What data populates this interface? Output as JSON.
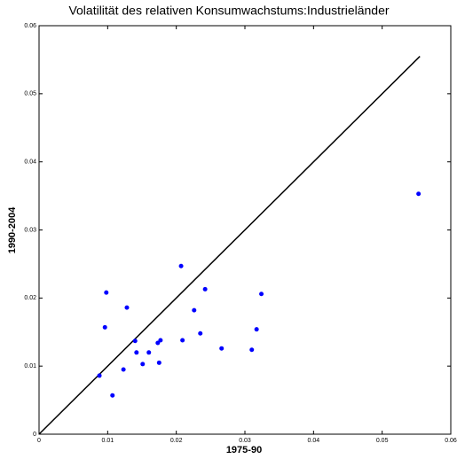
{
  "chart_data": {
    "type": "scatter",
    "title": "Volatilität des relativen Konsumwachstums:Industrieländer",
    "xlabel": "1975-90",
    "ylabel": "1990-2004",
    "color": "#0000ff",
    "line_color": "#000000",
    "x": [
      0.0088,
      0.0096,
      0.0098,
      0.0107,
      0.0123,
      0.0128,
      0.014,
      0.0142,
      0.0151,
      0.016,
      0.0173,
      0.0177,
      0.0175,
      0.0207,
      0.0209,
      0.0226,
      0.0235,
      0.0242,
      0.0266,
      0.031,
      0.0317,
      0.0324,
      0.0553
    ],
    "values": [
      0.0086,
      0.0157,
      0.0208,
      0.0057,
      0.0095,
      0.0186,
      0.0137,
      0.012,
      0.0103,
      0.012,
      0.0134,
      0.0138,
      0.0105,
      0.0247,
      0.0138,
      0.0182,
      0.0148,
      0.0213,
      0.0126,
      0.0124,
      0.0154,
      0.0206,
      0.0353
    ],
    "reference_line": {
      "x": [
        0,
        0.0555
      ],
      "y": [
        0,
        0.0555
      ]
    },
    "xlim": [
      0,
      0.06
    ],
    "ylim": [
      0,
      0.06
    ],
    "xticks": [
      0,
      0.01,
      0.02,
      0.03,
      0.04,
      0.05,
      0.06
    ],
    "yticks": [
      0,
      0.01,
      0.02,
      0.03,
      0.04,
      0.05,
      0.06
    ]
  }
}
